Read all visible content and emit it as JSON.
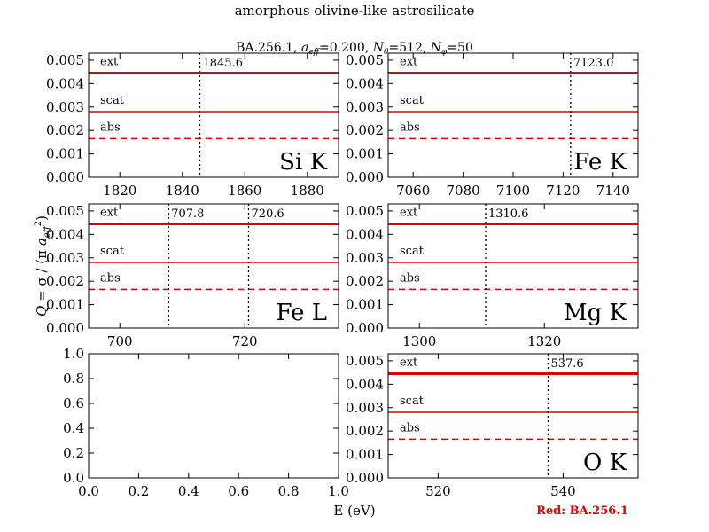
{
  "title": "amorphous olivine-like astrosilicate",
  "subtitle": "BA.256.1, a_eff=0.200, N_θ=512, N_φ=50",
  "subtitle_parts": {
    "name": "BA.256.1, ",
    "aeff_sym": "a",
    "aeff_sub": "eff",
    "aeff_val": "=0.200, ",
    "nth_sym": "N",
    "nth_sub": "θ",
    "nth_val": "=512, ",
    "nph_sym": "N",
    "nph_sub": "φ",
    "nph_val": "=50"
  },
  "ylabel": "Q = σ / (π a_eff²)",
  "ylabel_parts": {
    "q": "Q",
    "eq": " = σ / (π",
    "a": " a",
    "sub": "eff",
    "sup": "2",
    "close": ")"
  },
  "xlabel": "E (eV)",
  "footer": "Red: BA.256.1",
  "colors": {
    "series": "#dd0000",
    "footer": "#ee0000"
  },
  "chart_data": [
    {
      "type": "line",
      "edge": "Si K",
      "xlim": [
        1810,
        1890
      ],
      "ylim": [
        0,
        0.0053
      ],
      "xticks": [
        1820,
        1840,
        1860,
        1880
      ],
      "yticks": [
        "0.000",
        "0.001",
        "0.002",
        "0.003",
        "0.004",
        "0.005"
      ],
      "markers": [
        {
          "x": 1845.6,
          "label": "1845.6"
        }
      ],
      "series": [
        {
          "name": "ext",
          "y": 0.00445,
          "style": "thick"
        },
        {
          "name": "scat",
          "y": 0.0028,
          "style": "solid"
        },
        {
          "name": "abs",
          "y": 0.00165,
          "style": "dashed"
        }
      ]
    },
    {
      "type": "line",
      "edge": "Fe K",
      "xlim": [
        7050,
        7150
      ],
      "ylim": [
        0,
        0.0053
      ],
      "xticks": [
        7060,
        7080,
        7100,
        7120,
        7140
      ],
      "yticks": [
        "0.000",
        "0.001",
        "0.002",
        "0.003",
        "0.004",
        "0.005"
      ],
      "markers": [
        {
          "x": 7123.0,
          "label": "7123.0"
        }
      ],
      "series": [
        {
          "name": "ext",
          "y": 0.00445,
          "style": "thick"
        },
        {
          "name": "scat",
          "y": 0.0028,
          "style": "solid"
        },
        {
          "name": "abs",
          "y": 0.00165,
          "style": "dashed"
        }
      ]
    },
    {
      "type": "line",
      "edge": "Fe L",
      "xlim": [
        695,
        735
      ],
      "ylim": [
        0,
        0.0053
      ],
      "xticks": [
        700,
        720
      ],
      "yticks": [
        "0.000",
        "0.001",
        "0.002",
        "0.003",
        "0.004",
        "0.005"
      ],
      "markers": [
        {
          "x": 707.8,
          "label": "707.8"
        },
        {
          "x": 720.6,
          "label": "720.6"
        }
      ],
      "series": [
        {
          "name": "ext",
          "y": 0.00445,
          "style": "thick"
        },
        {
          "name": "scat",
          "y": 0.0028,
          "style": "solid"
        },
        {
          "name": "abs",
          "y": 0.00165,
          "style": "dashed"
        }
      ]
    },
    {
      "type": "line",
      "edge": "Mg K",
      "xlim": [
        1295,
        1335
      ],
      "ylim": [
        0,
        0.0053
      ],
      "xticks": [
        1300,
        1320
      ],
      "yticks": [
        "0.000",
        "0.001",
        "0.002",
        "0.003",
        "0.004",
        "0.005"
      ],
      "markers": [
        {
          "x": 1310.6,
          "label": "1310.6"
        }
      ],
      "series": [
        {
          "name": "ext",
          "y": 0.00445,
          "style": "thick"
        },
        {
          "name": "scat",
          "y": 0.0028,
          "style": "solid"
        },
        {
          "name": "abs",
          "y": 0.00165,
          "style": "dashed"
        }
      ]
    },
    {
      "type": "line",
      "edge": "",
      "xlim": [
        0,
        1
      ],
      "ylim": [
        0,
        1
      ],
      "xticks": [
        "0.0",
        "0.2",
        "0.4",
        "0.6",
        "0.8",
        "1.0"
      ],
      "yticks": [
        "0.0",
        "0.2",
        "0.4",
        "0.6",
        "0.8",
        "1.0"
      ],
      "markers": [],
      "series": []
    },
    {
      "type": "line",
      "edge": "O K",
      "xlim": [
        512,
        552
      ],
      "ylim": [
        0,
        0.0053
      ],
      "xticks": [
        520,
        540
      ],
      "yticks": [
        "0.000",
        "0.001",
        "0.002",
        "0.003",
        "0.004",
        "0.005"
      ],
      "markers": [
        {
          "x": 537.6,
          "label": "537.6"
        }
      ],
      "series": [
        {
          "name": "ext",
          "y": 0.00445,
          "style": "thick"
        },
        {
          "name": "scat",
          "y": 0.0028,
          "style": "solid"
        },
        {
          "name": "abs",
          "y": 0.00165,
          "style": "dashed"
        }
      ]
    }
  ]
}
